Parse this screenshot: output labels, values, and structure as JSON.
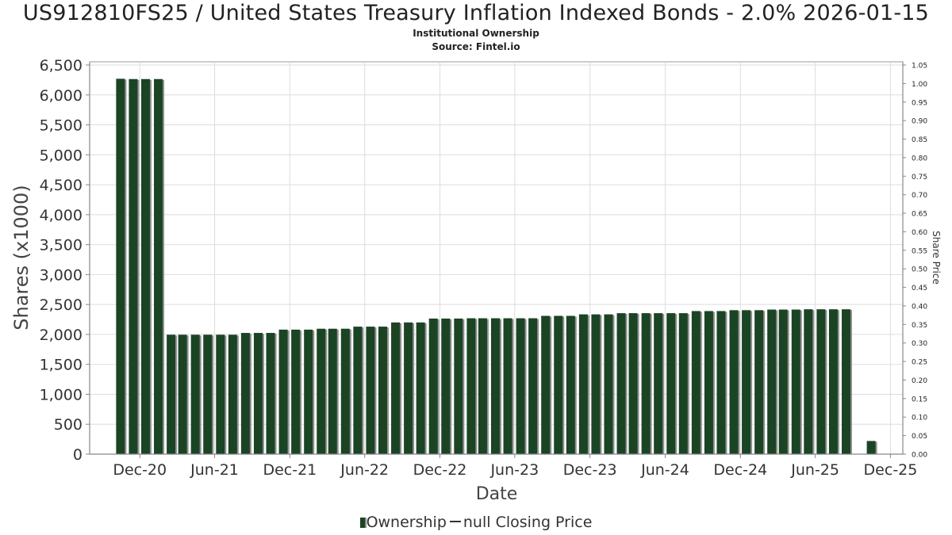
{
  "header": {
    "title": "US912810FS25 / United States Treasury Inflation Indexed Bonds - 2.0% 2026-01-15",
    "subtitle": "Institutional Ownership",
    "source": "Source: Fintel.io"
  },
  "legend": {
    "ownership_label": "Ownership",
    "price_label": "null Closing Price"
  },
  "colors": {
    "bar": "#1b4425",
    "bar_shadow": "#8f8f8f",
    "grid": "#dddddd"
  },
  "chart_data": {
    "type": "bar",
    "title": "US912810FS25 / United States Treasury Inflation Indexed Bonds - 2.0% 2026-01-15",
    "subtitle": "Institutional Ownership",
    "xlabel": "Date",
    "ylabel": "Shares (x1000)",
    "y2label": "Share Price",
    "ylim": [
      0,
      6500
    ],
    "y2lim": [
      0,
      1.05
    ],
    "xlim": [
      "2020-08-01",
      "2025-12-31"
    ],
    "yticks": [
      "0",
      "500",
      "1,000",
      "1,500",
      "2,000",
      "2,500",
      "3,000",
      "3,500",
      "4,000",
      "4,500",
      "5,000",
      "5,500",
      "6,000",
      "6,500"
    ],
    "y2ticks": [
      "0.00",
      "0.05",
      "0.10",
      "0.15",
      "0.20",
      "0.25",
      "0.30",
      "0.35",
      "0.40",
      "0.45",
      "0.50",
      "0.55",
      "0.60",
      "0.65",
      "0.70",
      "0.75",
      "0.80",
      "0.85",
      "0.90",
      "0.95",
      "1.00",
      "1.05"
    ],
    "xticks": [
      {
        "date": "2020-12-01",
        "label": "Dec-20"
      },
      {
        "date": "2021-06-01",
        "label": "Jun-21"
      },
      {
        "date": "2021-12-01",
        "label": "Dec-21"
      },
      {
        "date": "2022-06-01",
        "label": "Jun-22"
      },
      {
        "date": "2022-12-01",
        "label": "Dec-22"
      },
      {
        "date": "2023-06-01",
        "label": "Jun-23"
      },
      {
        "date": "2023-12-01",
        "label": "Dec-23"
      },
      {
        "date": "2024-06-01",
        "label": "Jun-24"
      },
      {
        "date": "2024-12-01",
        "label": "Dec-24"
      },
      {
        "date": "2025-06-01",
        "label": "Jun-25"
      },
      {
        "date": "2025-12-01",
        "label": "Dec-25"
      }
    ],
    "grid": true,
    "legend_position": "bottom",
    "series": [
      {
        "name": "Ownership",
        "dates": [
          "2020-10-15",
          "2020-11-15",
          "2020-12-15",
          "2021-01-15",
          "2021-02-15",
          "2021-03-15",
          "2021-04-15",
          "2021-05-15",
          "2021-06-15",
          "2021-07-15",
          "2021-08-15",
          "2021-09-15",
          "2021-10-15",
          "2021-11-15",
          "2021-12-15",
          "2022-01-15",
          "2022-02-15",
          "2022-03-15",
          "2022-04-15",
          "2022-05-15",
          "2022-06-15",
          "2022-07-15",
          "2022-08-15",
          "2022-09-15",
          "2022-10-15",
          "2022-11-15",
          "2022-12-15",
          "2023-01-15",
          "2023-02-15",
          "2023-03-15",
          "2023-04-15",
          "2023-05-15",
          "2023-06-15",
          "2023-07-15",
          "2023-08-15",
          "2023-09-15",
          "2023-10-15",
          "2023-11-15",
          "2023-12-15",
          "2024-01-15",
          "2024-02-15",
          "2024-03-15",
          "2024-04-15",
          "2024-05-15",
          "2024-06-15",
          "2024-07-15",
          "2024-08-15",
          "2024-09-15",
          "2024-10-15",
          "2024-11-15",
          "2024-12-15",
          "2025-01-15",
          "2025-02-15",
          "2025-03-15",
          "2025-04-15",
          "2025-05-15",
          "2025-06-15",
          "2025-07-15",
          "2025-08-15",
          "2025-10-15"
        ],
        "values": [
          6270,
          6265,
          6265,
          6265,
          1995,
          1995,
          1995,
          1995,
          1995,
          1995,
          2025,
          2025,
          2025,
          2080,
          2080,
          2080,
          2095,
          2095,
          2095,
          2130,
          2130,
          2130,
          2200,
          2200,
          2200,
          2265,
          2265,
          2265,
          2270,
          2270,
          2270,
          2270,
          2270,
          2270,
          2310,
          2310,
          2310,
          2335,
          2335,
          2335,
          2355,
          2355,
          2355,
          2355,
          2355,
          2355,
          2390,
          2390,
          2390,
          2405,
          2405,
          2405,
          2415,
          2415,
          2415,
          2420,
          2420,
          2420,
          2420,
          220
        ]
      }
    ]
  }
}
